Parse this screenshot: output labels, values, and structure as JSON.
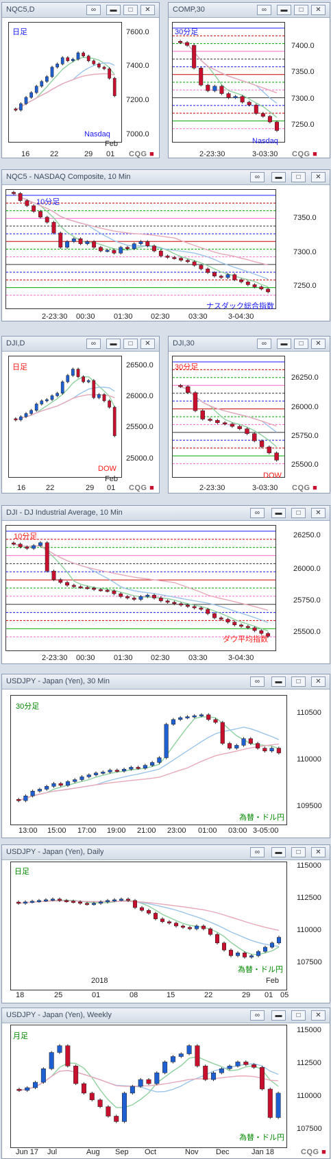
{
  "panels": [
    {
      "id": "p1",
      "title": "NQC5,D",
      "period": "日足",
      "period_color": "#1a1aff",
      "corner": "Nasdaq",
      "corner_color": "#1a1aff",
      "yticks": [
        "7600.0",
        "7400.0",
        "7200.0",
        "7000.0"
      ],
      "xticks": [
        "16",
        "22",
        "29",
        "01"
      ],
      "extra_x": "Feb",
      "logo": "CQG",
      "ylim": [
        6950,
        7700
      ]
    },
    {
      "id": "p2",
      "title": "COMP,30",
      "period": "30分足",
      "period_color": "#1a1aff",
      "corner": "Nasdaq",
      "corner_color": "#1a1aff",
      "yticks": [
        "7400.0",
        "7350.0",
        "7300.0",
        "7250.0"
      ],
      "xticks": [
        "2-23:30",
        "3-03:30"
      ],
      "logo": "CQG",
      "ylim": [
        7220,
        7430
      ]
    },
    {
      "id": "p3",
      "title": "NQC5 - NASDAQ Composite, 10 Min",
      "period": "10分足",
      "period_color": "#1a1aff",
      "corner": "ナスダック総合指数",
      "corner_color": "#1a1aff",
      "yticks": [
        "7350.0",
        "7300.0",
        "7250.0"
      ],
      "xticks": [
        "2-23:30",
        "00:30",
        "01:30",
        "02:30",
        "03:30",
        "3-04:30"
      ],
      "ylim": [
        7225,
        7390
      ]
    },
    {
      "id": "p4",
      "title": "DJI,D",
      "period": "日足",
      "period_color": "#ff1a1a",
      "corner": "DOW",
      "corner_color": "#ff1a1a",
      "yticks": [
        "26500.0",
        "26000.0",
        "25500.0",
        "25000.0"
      ],
      "xticks": [
        "16",
        "22",
        "29",
        "01"
      ],
      "extra_x": "Feb",
      "logo": "CQG",
      "ylim": [
        24900,
        26800
      ]
    },
    {
      "id": "p5",
      "title": "DJI,30",
      "period": "30分足",
      "period_color": "#ff1a1a",
      "corner": "DOW",
      "corner_color": "#ff1a1a",
      "yticks": [
        "26250.0",
        "26000.0",
        "25750.0",
        "25500.0"
      ],
      "xticks": [
        "2-23:30",
        "3-03:30"
      ],
      "logo": "CQG",
      "ylim": [
        25400,
        26400
      ]
    },
    {
      "id": "p6",
      "title": "DJI - DJ Industrial Average, 10 Min",
      "period": "10分足",
      "period_color": "#ff1a1a",
      "corner": "ダウ平均指数",
      "corner_color": "#ff1a1a",
      "yticks": [
        "26250.0",
        "26000.0",
        "25750.0",
        "25500.0"
      ],
      "xticks": [
        "2-23:30",
        "00:30",
        "01:30",
        "02:30",
        "03:30",
        "3-04:30"
      ],
      "ylim": [
        25420,
        26300
      ]
    },
    {
      "id": "p7",
      "title": "USDJPY - Japan (Yen), 30 Min",
      "period": "30分足",
      "period_color": "#008800",
      "corner": "為替・ドル円",
      "corner_color": "#008800",
      "yticks": [
        "110500",
        "110000",
        "109500"
      ],
      "xticks": [
        "13:00",
        "15:00",
        "17:00",
        "19:00",
        "21:00",
        "23:00",
        "01:00",
        "03:00",
        "3-05:00"
      ],
      "ylim": [
        109350,
        110700
      ]
    },
    {
      "id": "p8",
      "title": "USDJPY - Japan (Yen), Daily",
      "period": "日足",
      "period_color": "#008800",
      "corner": "為替・ドル円",
      "corner_color": "#008800",
      "yticks": [
        "115000",
        "112500",
        "110000",
        "107500"
      ],
      "xticks": [
        "18",
        "25",
        "01",
        "08",
        "15",
        "22",
        "29",
        "01",
        "05"
      ],
      "extra_x": "2018",
      "extra_x2": "Feb",
      "ylim": [
        106500,
        115500
      ]
    },
    {
      "id": "p9",
      "title": "USDJPY - Japan (Yen), Weekly",
      "period": "月足",
      "period_color": "#008800",
      "corner": "為替・ドル円",
      "corner_color": "#008800",
      "yticks": [
        "115000",
        "112500",
        "110000",
        "107500"
      ],
      "xticks": [
        "Jun 17",
        "Jul",
        "Aug",
        "Sep",
        "Oct",
        "Nov",
        "Dec",
        "Jan 18"
      ],
      "logo": "CQG",
      "ylim": [
        106500,
        115500
      ]
    }
  ],
  "chart_data": [
    {
      "type": "candlestick",
      "title": "NQC5,D",
      "closes": [
        7150,
        7190,
        7230,
        7260,
        7300,
        7330,
        7360,
        7420,
        7440,
        7480,
        7460,
        7470,
        7510,
        7490,
        7460,
        7440,
        7420,
        7410,
        7350,
        7240
      ],
      "ylim": [
        6950,
        7700
      ]
    },
    {
      "type": "candlestick",
      "title": "COMP,30",
      "closes": [
        7395,
        7390,
        7350,
        7320,
        7310,
        7318,
        7305,
        7298,
        7300,
        7290,
        7285,
        7270,
        7265,
        7255,
        7240
      ],
      "ylim": [
        7220,
        7430
      ]
    },
    {
      "type": "candlestick",
      "title": "NQC5 - NASDAQ Composite, 10 Min",
      "closes": [
        7385,
        7375,
        7368,
        7360,
        7352,
        7345,
        7330,
        7310,
        7318,
        7322,
        7315,
        7318,
        7310,
        7305,
        7306,
        7302,
        7310,
        7308,
        7315,
        7318,
        7312,
        7305,
        7298,
        7296,
        7295,
        7292,
        7290,
        7285,
        7280,
        7275,
        7270,
        7268,
        7272,
        7265,
        7262,
        7258,
        7255,
        7252,
        7248
      ],
      "ylim": [
        7225,
        7390
      ]
    },
    {
      "type": "candlestick",
      "title": "DJI,D",
      "closes": [
        25800,
        25850,
        25900,
        25950,
        26050,
        26100,
        26120,
        26180,
        26220,
        26400,
        26500,
        26600,
        26480,
        26400,
        26420,
        26150,
        26200,
        26100,
        26000,
        25550
      ],
      "ylim": [
        24900,
        26800
      ]
    },
    {
      "type": "candlestick",
      "title": "DJI,30",
      "closes": [
        26150,
        26100,
        25950,
        25880,
        25870,
        25850,
        25840,
        25820,
        25800,
        25760,
        25700,
        25650,
        25600,
        25540
      ],
      "ylim": [
        25400,
        26400
      ]
    },
    {
      "type": "candlestick",
      "title": "DJI - DJ Industrial Average, 10 Min",
      "closes": [
        26170,
        26150,
        26140,
        26160,
        26180,
        25980,
        25920,
        25900,
        25880,
        25870,
        25865,
        25860,
        25850,
        25845,
        25840,
        25820,
        25800,
        25790,
        25780,
        25800,
        25810,
        25790,
        25770,
        25760,
        25750,
        25740,
        25730,
        25720,
        25710,
        25680,
        25650,
        25640,
        25620,
        25600,
        25590,
        25580,
        25560,
        25540,
        25520
      ],
      "ylim": [
        25420,
        26300
      ]
    },
    {
      "type": "candlestick",
      "title": "USDJPY - Japan (Yen), 30 Min",
      "closes": [
        109600,
        109650,
        109700,
        109720,
        109750,
        109780,
        109760,
        109800,
        109820,
        109850,
        109870,
        109890,
        109900,
        109920,
        109910,
        109930,
        109950,
        109940,
        109970,
        110000,
        110050,
        110400,
        110450,
        110470,
        110480,
        110490,
        110500,
        110450,
        110420,
        110200,
        110150,
        110180,
        110250,
        110200,
        110150,
        110120,
        110150,
        110100
      ],
      "ylim": [
        109350,
        110700
      ]
    },
    {
      "type": "candlestick",
      "title": "USDJPY - Japan (Yen), Daily",
      "closes": [
        112600,
        112700,
        112750,
        112800,
        112850,
        112900,
        112800,
        112750,
        112700,
        112600,
        112550,
        112600,
        112700,
        112800,
        112850,
        112900,
        112800,
        112300,
        112100,
        111900,
        111500,
        111300,
        111200,
        111000,
        110900,
        110800,
        111000,
        110800,
        110400,
        109800,
        109300,
        108900,
        109100,
        108800,
        108900,
        109200,
        109500,
        109800,
        110200
      ],
      "ylim": [
        106500,
        115500
      ]
    },
    {
      "type": "candlestick",
      "title": "USDJPY - Japan (Yen), Weekly",
      "closes": [
        110700,
        110900,
        111300,
        112300,
        113500,
        114000,
        112500,
        111200,
        110500,
        110000,
        109500,
        108800,
        108400,
        110500,
        111000,
        111500,
        111200,
        112000,
        112800,
        113200,
        113400,
        114000,
        112500,
        111500,
        112000,
        112300,
        112500,
        112800,
        112600,
        112400,
        110800,
        108700,
        110500
      ],
      "ylim": [
        106500,
        115500
      ]
    }
  ]
}
